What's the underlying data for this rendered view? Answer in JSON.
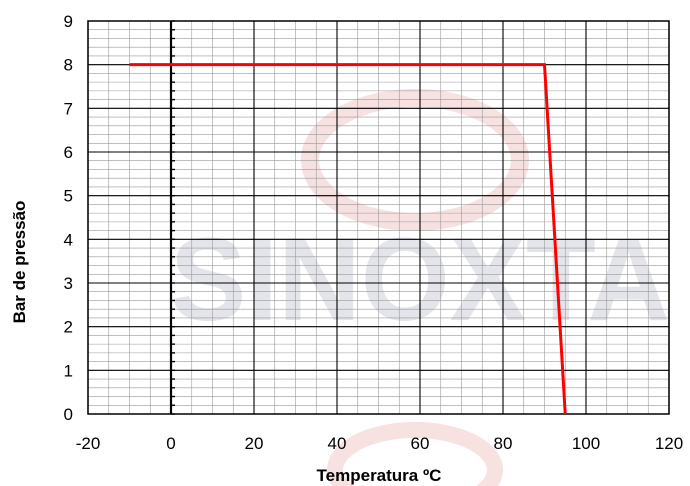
{
  "chart_data": {
    "type": "line",
    "title": "",
    "xlabel": "Temperatura ºC",
    "ylabel": "Bar de pressão",
    "xlim": [
      -20,
      120
    ],
    "ylim": [
      0,
      9
    ],
    "x_ticks": [
      "-20",
      "0",
      "20",
      "40",
      "60",
      "80",
      "100",
      "120"
    ],
    "y_ticks": [
      "0",
      "1",
      "2",
      "3",
      "4",
      "5",
      "6",
      "7",
      "8",
      "9"
    ],
    "grid": true,
    "grid_minor": true,
    "legend": "none",
    "series": [
      {
        "color": "#ff0000",
        "points": [
          {
            "x": -10,
            "y": 8
          },
          {
            "x": 90,
            "y": 8
          },
          {
            "x": 95,
            "y": 0
          }
        ]
      }
    ]
  },
  "watermark": {
    "text": "SINOXTA",
    "color": "#c8c8d4"
  }
}
